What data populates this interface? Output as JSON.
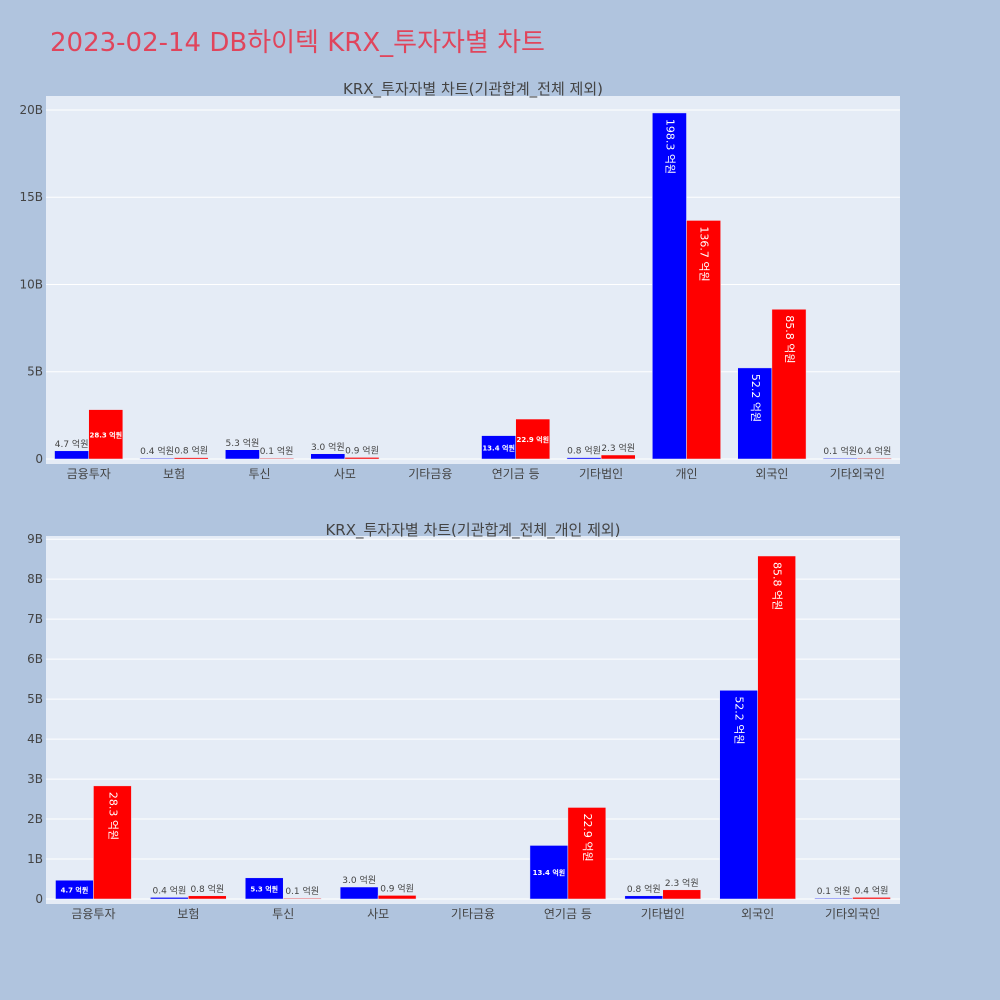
{
  "title": "2023-02-14 DB하이텍 KRX_투자자별 차트",
  "colors": {
    "series_a": "#0000ff",
    "series_b": "#ff0000",
    "plot_bg": "#e5ecf6",
    "page_bg": "#b0c4de",
    "grid": "#ffffff",
    "text": "#444444"
  },
  "chart_data": [
    {
      "type": "bar",
      "title": "KRX_투자자별 차트(기관합계_전체 제외)",
      "categories": [
        "금융투자",
        "보험",
        "투신",
        "사모",
        "기타금융",
        "연기금 등",
        "기타법인",
        "개인",
        "외국인",
        "기타외국인"
      ],
      "series": [
        {
          "values": [
            0.47,
            0.04,
            0.53,
            0.3,
            null,
            1.34,
            0.08,
            19.83,
            5.22,
            0.01
          ],
          "labels": [
            "4.7 억원",
            "0.4 억원",
            "5.3 억원",
            "3.0 억원",
            "",
            "13.4 억원",
            "0.8 억원",
            "198.3 억원",
            "52.2 억원",
            "0.1 억원"
          ]
        },
        {
          "values": [
            2.83,
            0.08,
            0.01,
            0.09,
            null,
            2.29,
            0.23,
            13.67,
            8.58,
            0.04
          ],
          "labels": [
            "28.3 억원",
            "0.8 억원",
            "0.1 억원",
            "0.9 억원",
            "",
            "22.9 억원",
            "2.3 억원",
            "136.7 억원",
            "85.8 억원",
            "0.4 억원"
          ]
        }
      ],
      "yticks": [
        0,
        5,
        10,
        15,
        20
      ],
      "ytick_labels": [
        "0",
        "5B",
        "10B",
        "15B",
        "20B"
      ],
      "ylim": [
        0,
        20.8
      ],
      "grid": true
    },
    {
      "type": "bar",
      "title": "KRX_투자자별 차트(기관합계_전체_개인 제외)",
      "categories": [
        "금융투자",
        "보험",
        "투신",
        "사모",
        "기타금융",
        "연기금 등",
        "기타법인",
        "외국인",
        "기타외국인"
      ],
      "series": [
        {
          "values": [
            0.47,
            0.04,
            0.53,
            0.3,
            null,
            1.34,
            0.08,
            5.22,
            0.01
          ],
          "labels": [
            "4.7 억원",
            "0.4 억원",
            "5.3 억원",
            "3.0 억원",
            "",
            "13.4 억원",
            "0.8 억원",
            "52.2 억원",
            "0.1 억원"
          ]
        },
        {
          "values": [
            2.83,
            0.08,
            0.01,
            0.09,
            null,
            2.29,
            0.23,
            8.58,
            0.04
          ],
          "labels": [
            "28.3 억원",
            "0.8 억원",
            "0.1 억원",
            "0.9 억원",
            "",
            "22.9 억원",
            "2.3 억원",
            "85.8 억원",
            "0.4 억원"
          ]
        }
      ],
      "yticks": [
        0,
        1,
        2,
        3,
        4,
        5,
        6,
        7,
        8,
        9
      ],
      "ytick_labels": [
        "0",
        "1B",
        "2B",
        "3B",
        "4B",
        "5B",
        "6B",
        "7B",
        "8B",
        "9B"
      ],
      "ylim": [
        0,
        9.08
      ],
      "grid": true
    }
  ]
}
